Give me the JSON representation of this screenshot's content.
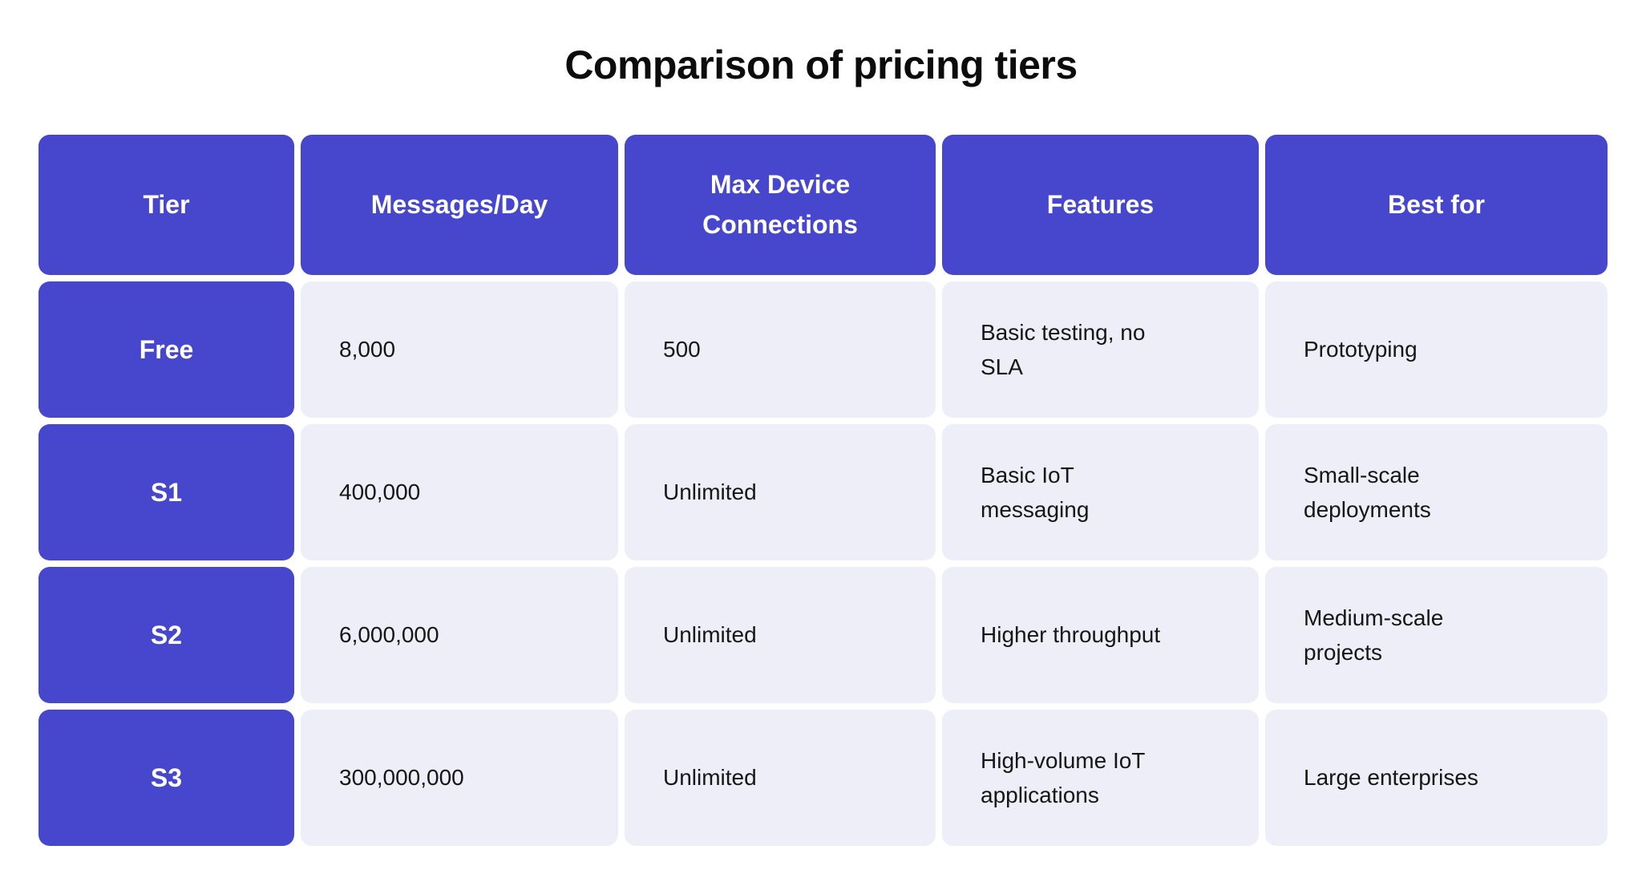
{
  "title": "Comparison of pricing tiers",
  "colors": {
    "accent_indigo": "#4747CD",
    "cell_lavender": "#EDEEF8",
    "header_text": "#FFFFFF",
    "body_text": "#161616",
    "page_bg": "#FFFFFF"
  },
  "chart_data": {
    "type": "table",
    "title": "Comparison of pricing tiers",
    "columns": [
      "Tier",
      "Messages/Day",
      "Max Device Connections",
      "Features",
      "Best for"
    ],
    "rows": [
      [
        "Free",
        "8,000",
        "500",
        "Basic testing, no SLA",
        "Prototyping"
      ],
      [
        "S1",
        "400,000",
        "Unlimited",
        "Basic IoT messaging",
        "Small-scale deployments"
      ],
      [
        "S2",
        "6,000,000",
        "Unlimited",
        "Higher throughput",
        "Medium-scale projects"
      ],
      [
        "S3",
        "300,000,000",
        "Unlimited",
        "High-volume IoT applications",
        "Large enterprises"
      ]
    ]
  }
}
